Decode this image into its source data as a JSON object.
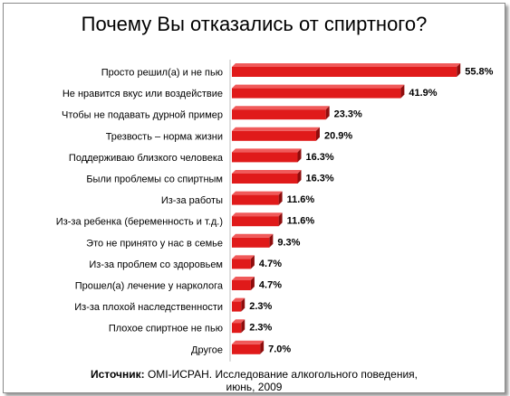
{
  "chart_data": {
    "type": "bar",
    "orientation": "horizontal",
    "title": "Почему Вы отказались от спиртного?",
    "categories": [
      "Просто решил(а) и не пью",
      "Не нравится вкус или воздействие",
      "Чтобы не подавать дурной пример",
      "Трезвость – норма жизни",
      "Поддерживаю близкого человека",
      "Были проблемы со спиртным",
      "Из-за работы",
      "Из-за ребенка (беременность и т.д.)",
      "Это не принято у нас в семье",
      "Из-за проблем со здоровьем",
      "Прошел(а) лечение у нарколога",
      "Из-за плохой наследственности",
      "Плохое спиртное не пью",
      "Другое"
    ],
    "values": [
      55.8,
      41.9,
      23.3,
      20.9,
      16.3,
      16.3,
      11.6,
      11.6,
      9.3,
      4.7,
      4.7,
      2.3,
      2.3,
      7.0
    ],
    "value_labels": [
      "55.8%",
      "41.9%",
      "23.3%",
      "20.9%",
      "16.3%",
      "16.3%",
      "11.6%",
      "11.6%",
      "9.3%",
      "4.7%",
      "4.7%",
      "2.3%",
      "2.3%",
      "7.0%"
    ],
    "xlim": [
      0,
      58
    ],
    "grid": false,
    "bar_color": "#e01a1a"
  },
  "source": {
    "label": "Источник:",
    "line1": " ОМI-ИСРАН. Исследование алкогольного поведения,",
    "line2": "июнь, 2009"
  }
}
